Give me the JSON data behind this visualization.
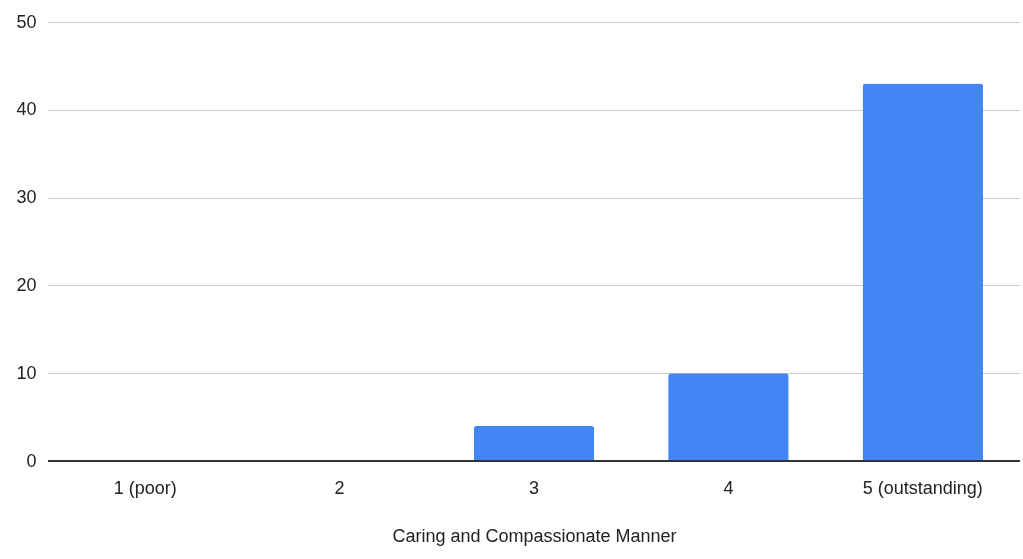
{
  "chart_data": {
    "type": "bar",
    "xlabel": "Caring and Compassionate Manner",
    "categories": [
      "1 (poor)",
      "2",
      "3",
      "4",
      "5 (outstanding)"
    ],
    "values": [
      0,
      0,
      4,
      10,
      43
    ],
    "color": "#4285f4",
    "ylim": [
      0,
      50
    ],
    "yticks": [
      0,
      10,
      20,
      30,
      40,
      50
    ],
    "grid": "y"
  }
}
